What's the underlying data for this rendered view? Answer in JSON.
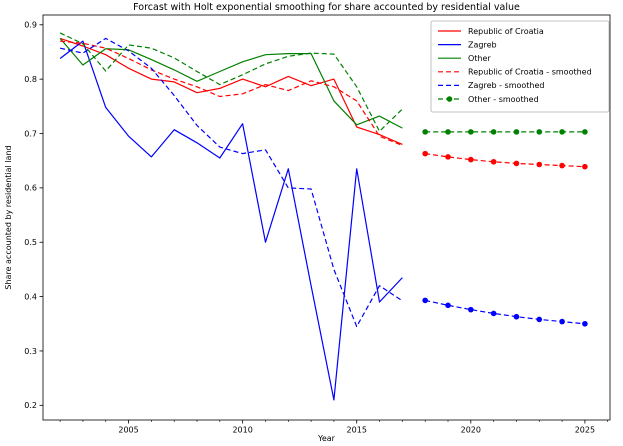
{
  "chart_data": {
    "type": "line",
    "title": "Forcast with Holt exponential smoothing for share accounted by residential value",
    "xlabel": "Year",
    "ylabel": "Share accounted by residential land",
    "xlim": [
      2001.25,
      2026.1
    ],
    "ylim": [
      0.173,
      0.918
    ],
    "x_ticks": [
      2005,
      2010,
      2015,
      2020,
      2025
    ],
    "x_minor_tick_start": 2002,
    "x_minor_tick_end": 2026,
    "y_ticks": [
      0.2,
      0.3,
      0.4,
      0.5,
      0.6,
      0.7,
      0.8,
      0.9
    ],
    "grid": false,
    "legend_position": "upper right",
    "years": [
      2002,
      2003,
      2004,
      2005,
      2006,
      2007,
      2008,
      2009,
      2010,
      2011,
      2012,
      2013,
      2014,
      2015,
      2016,
      2017
    ],
    "forecast_years": [
      2018,
      2019,
      2020,
      2021,
      2022,
      2023,
      2024,
      2025
    ],
    "series": [
      {
        "name": "Republic of Croatia",
        "color": "#ff0000",
        "style": "solid",
        "legend_marker": false,
        "values": [
          0.875,
          0.861,
          0.845,
          0.82,
          0.8,
          0.795,
          0.775,
          0.783,
          0.8,
          0.786,
          0.805,
          0.788,
          0.8,
          0.712,
          0.698,
          0.68
        ]
      },
      {
        "name": "Zagreb",
        "color": "#0000ff",
        "style": "solid",
        "legend_marker": false,
        "values": [
          0.838,
          0.87,
          0.748,
          0.695,
          0.657,
          0.707,
          0.683,
          0.655,
          0.718,
          0.5,
          0.635,
          0.42,
          0.21,
          0.635,
          0.39,
          0.435
        ]
      },
      {
        "name": "Other",
        "color": "#008000",
        "style": "solid",
        "legend_marker": false,
        "values": [
          0.875,
          0.826,
          0.856,
          0.854,
          0.836,
          0.817,
          0.796,
          0.814,
          0.832,
          0.845,
          0.847,
          0.847,
          0.76,
          0.716,
          0.732,
          0.71
        ]
      },
      {
        "name": "Republic of Croatia - smoothed",
        "color": "#ff0000",
        "style": "dashed",
        "legend_marker": false,
        "values": [
          0.87,
          0.866,
          0.857,
          0.838,
          0.817,
          0.8,
          0.786,
          0.768,
          0.773,
          0.79,
          0.779,
          0.797,
          0.786,
          0.76,
          0.695,
          0.678
        ],
        "forecast": [
          0.663,
          0.657,
          0.652,
          0.648,
          0.645,
          0.643,
          0.641,
          0.639
        ]
      },
      {
        "name": "Zagreb - smoothed",
        "color": "#0000ff",
        "style": "dashed",
        "legend_marker": false,
        "values": [
          0.857,
          0.848,
          0.875,
          0.852,
          0.82,
          0.77,
          0.715,
          0.675,
          0.663,
          0.67,
          0.6,
          0.598,
          0.45,
          0.345,
          0.42,
          0.392
        ],
        "forecast": [
          0.393,
          0.384,
          0.376,
          0.369,
          0.363,
          0.358,
          0.354,
          0.35
        ]
      },
      {
        "name": "Other - smoothed",
        "color": "#008000",
        "style": "dashed",
        "legend_marker": true,
        "values": [
          0.885,
          0.865,
          0.815,
          0.863,
          0.857,
          0.839,
          0.814,
          0.79,
          0.808,
          0.828,
          0.842,
          0.848,
          0.846,
          0.786,
          0.704,
          0.745
        ],
        "forecast": [
          0.703,
          0.703,
          0.703,
          0.703,
          0.703,
          0.703,
          0.703,
          0.703
        ]
      }
    ]
  }
}
